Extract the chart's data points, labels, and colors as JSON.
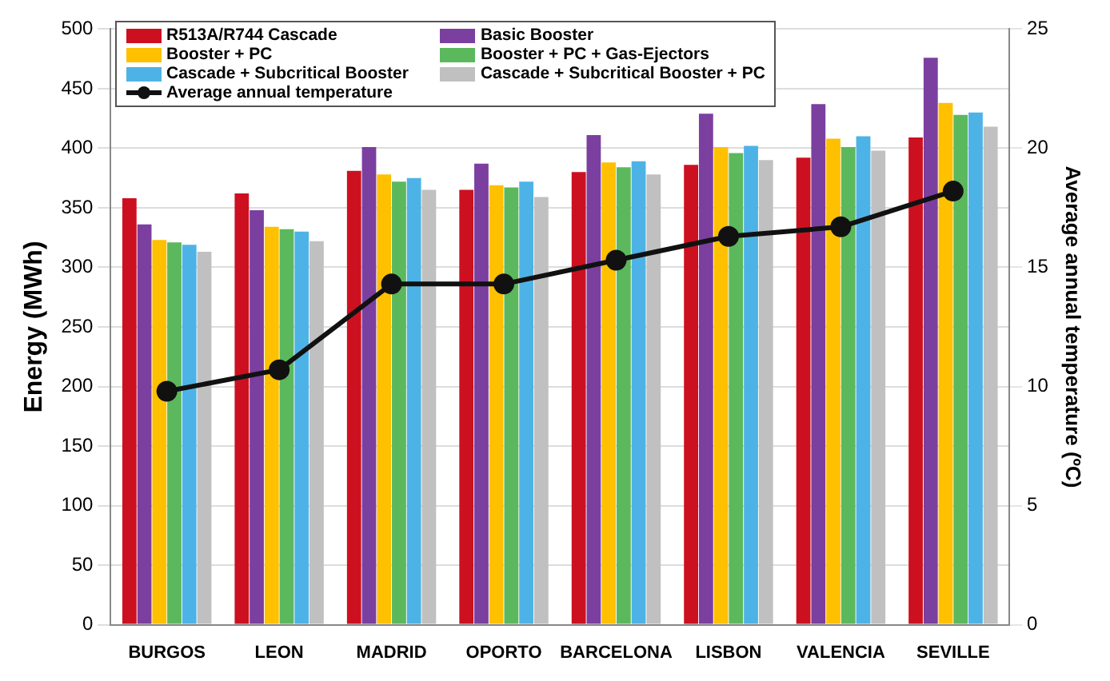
{
  "chart_data": {
    "type": "bar",
    "ylabel": "Energy (MWh)",
    "y2label": "Average annual temperature (ºC)",
    "categories": [
      "BURGOS",
      "LEON",
      "MADRID",
      "OPORTO",
      "BARCELONA",
      "LISBON",
      "VALENCIA",
      "SEVILLE"
    ],
    "series": [
      {
        "name": "R513A/R744 Cascade",
        "color": "#cc1020",
        "values": [
          358,
          362,
          381,
          365,
          380,
          386,
          392,
          409
        ]
      },
      {
        "name": "Basic Booster",
        "color": "#7b3fa0",
        "values": [
          336,
          348,
          401,
          387,
          411,
          429,
          437,
          476
        ]
      },
      {
        "name": "Booster + PC",
        "color": "#ffc000",
        "values": [
          323,
          334,
          378,
          369,
          388,
          401,
          408,
          438
        ]
      },
      {
        "name": "Booster + PC + Gas-Ejectors",
        "color": "#5cb85c",
        "values": [
          321,
          332,
          372,
          367,
          384,
          396,
          401,
          428
        ]
      },
      {
        "name": "Cascade + Subcritical Booster",
        "color": "#4db3e6",
        "values": [
          319,
          330,
          375,
          372,
          389,
          402,
          410,
          430
        ]
      },
      {
        "name": "Cascade + Subcritical Booster + PC",
        "color": "#c0c0c0",
        "values": [
          313,
          322,
          365,
          359,
          378,
          390,
          398,
          418
        ]
      },
      {
        "name": "Average annual temperature",
        "type": "line",
        "axis": "y2",
        "color": "#111111",
        "marker": "circle",
        "values": [
          9.8,
          10.7,
          14.3,
          14.3,
          15.3,
          16.3,
          16.7,
          18.2
        ]
      }
    ],
    "ylim": [
      0,
      500
    ],
    "yticks": [
      0,
      50,
      100,
      150,
      200,
      250,
      300,
      350,
      400,
      450,
      500
    ],
    "y2lim": [
      0,
      25
    ],
    "y2ticks": [
      0,
      5,
      10,
      15,
      20,
      25
    ],
    "grid": "y",
    "legend": "top left"
  }
}
